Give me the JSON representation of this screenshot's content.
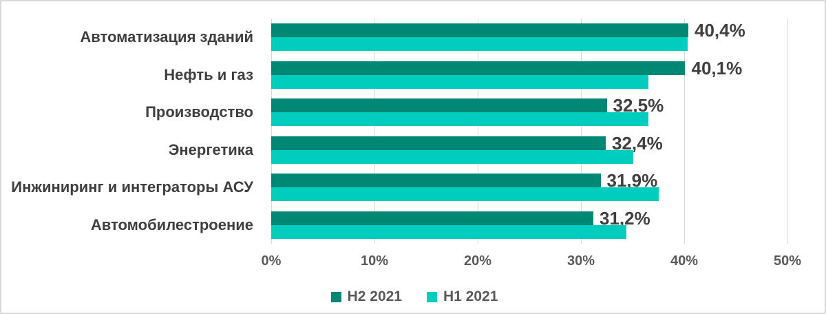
{
  "chart_data": {
    "type": "bar",
    "orientation": "horizontal",
    "title": "",
    "xlabel": "",
    "ylabel": "",
    "categories": [
      "Автоматизация зданий",
      "Нефть и газ",
      "Производство",
      "Энергетика",
      "Инжиниринг и интеграторы АСУ",
      "Автомобилестроение"
    ],
    "series": [
      {
        "name": "H2 2021",
        "color": "#008874",
        "values": [
          40.4,
          40.1,
          32.5,
          32.4,
          31.9,
          31.2
        ],
        "data_labels": [
          "40,4%",
          "40,1%",
          "32,5%",
          "32,4%",
          "31,9%",
          "31,2%"
        ]
      },
      {
        "name": "H1 2021",
        "color": "#00CDBE",
        "values": [
          40.3,
          36.5,
          36.5,
          35.1,
          37.5,
          34.4
        ],
        "data_labels": []
      }
    ],
    "xlim": [
      0,
      50
    ],
    "x_ticks": [
      0,
      10,
      20,
      30,
      40,
      50
    ],
    "x_tick_labels": [
      "0%",
      "10%",
      "20%",
      "30%",
      "40%",
      "50%"
    ],
    "grid": "vertical",
    "gridline_color": "#D9D9D9",
    "legend_position": "bottom",
    "text_color": "#3F3F3F",
    "axis_text_color": "#595959"
  },
  "legend": {
    "items": [
      {
        "label": "H2 2021",
        "color": "#008874"
      },
      {
        "label": "H1 2021",
        "color": "#00CDBE"
      }
    ]
  }
}
